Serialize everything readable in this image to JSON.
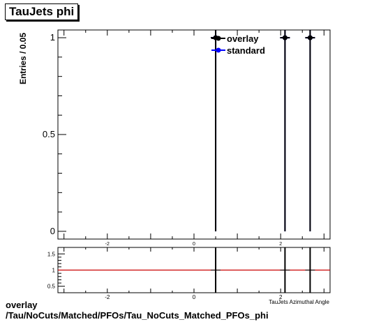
{
  "chart_data": {
    "type": "scatter",
    "title": "TauJets phi",
    "ylabel": "Entries / 0.05",
    "xlabel": "TauJets Azimuthal Angle",
    "xlim": [
      -3.14,
      3.14
    ],
    "ylim": [
      -0.04,
      1.04
    ],
    "x_ticks": [
      -2,
      0,
      2
    ],
    "y_ticks": [
      0,
      0.5,
      1
    ],
    "legend_position": "top-right",
    "series": [
      {
        "name": "overlay",
        "color": "#000000",
        "points": [
          {
            "x": 0.5,
            "y": 1,
            "err": 1
          },
          {
            "x": 2.1,
            "y": 1,
            "err": 1
          },
          {
            "x": 2.68,
            "y": 1,
            "err": 1
          }
        ]
      },
      {
        "name": "standard",
        "color": "#0000ff",
        "points": [
          {
            "x": 0.5,
            "y": 1,
            "err": 1
          },
          {
            "x": 2.1,
            "y": 1,
            "err": 1
          },
          {
            "x": 2.68,
            "y": 1,
            "err": 1
          }
        ]
      }
    ],
    "ratio": {
      "ylim": [
        0.3,
        1.7
      ],
      "y_ticks": [
        0.5,
        1,
        1.5
      ],
      "x_ticks": [
        -2,
        0,
        2
      ],
      "reference_value": 1,
      "reference_color": "#cc0000",
      "points": [
        {
          "x": 0.5,
          "y": 1
        },
        {
          "x": 2.1,
          "y": 1
        },
        {
          "x": 2.68,
          "y": 1
        }
      ]
    }
  },
  "footer": {
    "line1": "overlay",
    "line2": "/Tau/NoCuts/Matched/PFOs/Tau_NoCuts_Matched_PFOs_phi"
  }
}
